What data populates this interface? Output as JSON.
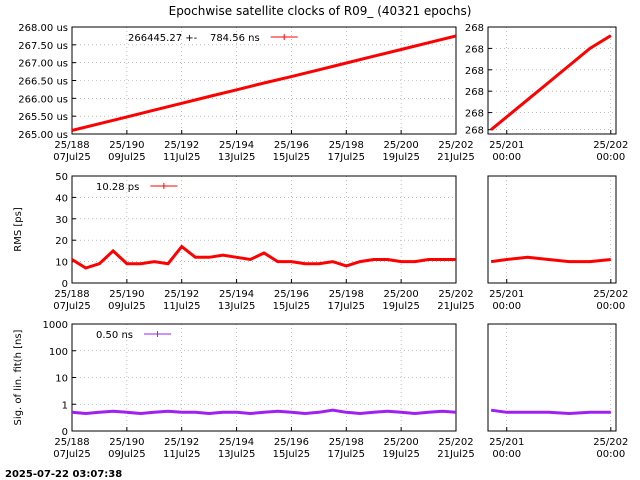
{
  "title": "Epochwise satellite clocks of R09_ (40321 epochs)",
  "timestamp": "2025-07-22 03:07:38",
  "chart_data": [
    {
      "type": "line",
      "log": false,
      "grid": true,
      "xlim": [
        188,
        202
      ],
      "ylim": [
        265,
        268
      ],
      "xticks": [
        {
          "value": 188,
          "label": "25/188\n07Jul25"
        },
        {
          "value": 190,
          "label": "25/190\n09Jul25"
        },
        {
          "value": 192,
          "label": "25/192\n11Jul25"
        },
        {
          "value": 194,
          "label": "25/194\n13Jul25"
        },
        {
          "value": 196,
          "label": "25/196\n15Jul25"
        },
        {
          "value": 198,
          "label": "25/198\n17Jul25"
        },
        {
          "value": 200,
          "label": "25/200\n19Jul25"
        },
        {
          "value": 202,
          "label": "25/202\n21Jul25"
        }
      ],
      "yticks": [
        {
          "value": 265,
          "label": "265.00 us"
        },
        {
          "value": 265.5,
          "label": "265.50 us"
        },
        {
          "value": 266,
          "label": "266.00 us"
        },
        {
          "value": 266.5,
          "label": "266.50 us"
        },
        {
          "value": 267,
          "label": "267.00 us"
        },
        {
          "value": 267.5,
          "label": "267.50 us"
        },
        {
          "value": 268,
          "label": "268.00 us"
        }
      ],
      "x": [
        188,
        189,
        190,
        191,
        192,
        193,
        194,
        195,
        196,
        197,
        198,
        199,
        200,
        201,
        202
      ],
      "series": [
        {
          "name": "266445.27 +-    784.56 ns",
          "color": "#ff0000",
          "values": [
            265.1,
            265.29,
            265.48,
            265.67,
            265.86,
            266.05,
            266.24,
            266.43,
            266.61,
            266.8,
            266.99,
            267.18,
            267.37,
            267.56,
            267.75
          ]
        }
      ]
    },
    {
      "type": "line",
      "log": false,
      "grid": true,
      "xlim": [
        200.82,
        202.05
      ],
      "ylim": [
        267.52,
        267.77
      ],
      "xticks": [
        {
          "value": 201,
          "label": "25/201\n00:00"
        },
        {
          "value": 202,
          "label": "25/202\n00:00"
        }
      ],
      "yticks": [
        {
          "value": 267.53,
          "label": "268"
        },
        {
          "value": 267.57,
          "label": "268"
        },
        {
          "value": 267.62,
          "label": "268"
        },
        {
          "value": 267.67,
          "label": "268"
        },
        {
          "value": 267.72,
          "label": "268"
        },
        {
          "value": 267.77,
          "label": "268"
        }
      ],
      "x": [
        200.85,
        201,
        201.2,
        201.4,
        201.6,
        201.8,
        202
      ],
      "series": [
        {
          "color": "#ff0000",
          "values": [
            267.53,
            267.56,
            267.6,
            267.64,
            267.68,
            267.72,
            267.75
          ]
        }
      ]
    },
    {
      "type": "line",
      "log": false,
      "grid": true,
      "ylabel": "RMS [ps]",
      "xlim": [
        188,
        202
      ],
      "ylim": [
        0,
        50
      ],
      "xticks": [
        {
          "value": 188,
          "label": "25/188\n07Jul25"
        },
        {
          "value": 190,
          "label": "25/190\n09Jul25"
        },
        {
          "value": 192,
          "label": "25/192\n11Jul25"
        },
        {
          "value": 194,
          "label": "25/194\n13Jul25"
        },
        {
          "value": 196,
          "label": "25/196\n15Jul25"
        },
        {
          "value": 198,
          "label": "25/198\n17Jul25"
        },
        {
          "value": 200,
          "label": "25/200\n19Jul25"
        },
        {
          "value": 202,
          "label": "25/202\n21Jul25"
        }
      ],
      "yticks": [
        0,
        10,
        20,
        30,
        40,
        50
      ],
      "x": [
        188,
        188.5,
        189,
        189.5,
        190,
        190.5,
        191,
        191.5,
        192,
        192.5,
        193,
        193.5,
        194,
        194.5,
        195,
        195.5,
        196,
        196.5,
        197,
        197.5,
        198,
        198.5,
        199,
        199.5,
        200,
        200.5,
        201,
        201.5,
        202
      ],
      "series": [
        {
          "name": "10.28 ps",
          "color": "#ff0000",
          "values": [
            11,
            7,
            9,
            15,
            9,
            9,
            10,
            9,
            17,
            12,
            12,
            13,
            12,
            11,
            14,
            10,
            10,
            9,
            9,
            10,
            8,
            10,
            11,
            11,
            10,
            10,
            11,
            11,
            11
          ]
        }
      ]
    },
    {
      "type": "line",
      "log": false,
      "grid": true,
      "xlim": [
        200.82,
        202.05
      ],
      "ylim": [
        0,
        50
      ],
      "xticks": [
        {
          "value": 201,
          "label": "25/201\n00:00"
        },
        {
          "value": 202,
          "label": "25/202\n00:00"
        }
      ],
      "x": [
        200.85,
        201,
        201.2,
        201.4,
        201.6,
        201.8,
        202
      ],
      "series": [
        {
          "color": "#ff0000",
          "values": [
            10,
            11,
            12,
            11,
            10,
            10,
            11
          ]
        }
      ]
    },
    {
      "type": "line",
      "log": true,
      "grid": true,
      "ylabel": "Sig. of lin. fit(h [ns]",
      "xlim": [
        188,
        202
      ],
      "ylim": [
        0.1,
        1000
      ],
      "xticks": [
        {
          "value": 188,
          "label": "25/188\n07Jul25"
        },
        {
          "value": 190,
          "label": "25/190\n09Jul25"
        },
        {
          "value": 192,
          "label": "25/192\n11Jul25"
        },
        {
          "value": 194,
          "label": "25/194\n13Jul25"
        },
        {
          "value": 196,
          "label": "25/196\n15Jul25"
        },
        {
          "value": 198,
          "label": "25/198\n17Jul25"
        },
        {
          "value": 200,
          "label": "25/200\n19Jul25"
        },
        {
          "value": 202,
          "label": "25/202\n21Jul25"
        }
      ],
      "yticks": [
        {
          "value": 0.1,
          "label": "0"
        },
        1,
        10,
        100,
        1000
      ],
      "x": [
        188,
        188.5,
        189,
        189.5,
        190,
        190.5,
        191,
        191.5,
        192,
        192.5,
        193,
        193.5,
        194,
        194.5,
        195,
        195.5,
        196,
        196.5,
        197,
        197.5,
        198,
        198.5,
        199,
        199.5,
        200,
        200.5,
        201,
        201.5,
        202
      ],
      "series": [
        {
          "name": "0.50 ns",
          "color": "#a020f0",
          "values": [
            0.5,
            0.45,
            0.5,
            0.55,
            0.5,
            0.45,
            0.5,
            0.55,
            0.5,
            0.5,
            0.45,
            0.5,
            0.5,
            0.45,
            0.5,
            0.55,
            0.5,
            0.45,
            0.5,
            0.6,
            0.5,
            0.45,
            0.5,
            0.55,
            0.5,
            0.45,
            0.5,
            0.55,
            0.5
          ]
        }
      ]
    },
    {
      "type": "line",
      "log": true,
      "grid": true,
      "xlim": [
        200.82,
        202.05
      ],
      "ylim": [
        0.1,
        1000
      ],
      "xticks": [
        {
          "value": 201,
          "label": "25/201\n00:00"
        },
        {
          "value": 202,
          "label": "25/202\n00:00"
        }
      ],
      "x": [
        200.85,
        201,
        201.2,
        201.4,
        201.6,
        201.8,
        202
      ],
      "series": [
        {
          "color": "#a020f0",
          "values": [
            0.6,
            0.5,
            0.5,
            0.5,
            0.45,
            0.5,
            0.5
          ]
        }
      ]
    }
  ]
}
